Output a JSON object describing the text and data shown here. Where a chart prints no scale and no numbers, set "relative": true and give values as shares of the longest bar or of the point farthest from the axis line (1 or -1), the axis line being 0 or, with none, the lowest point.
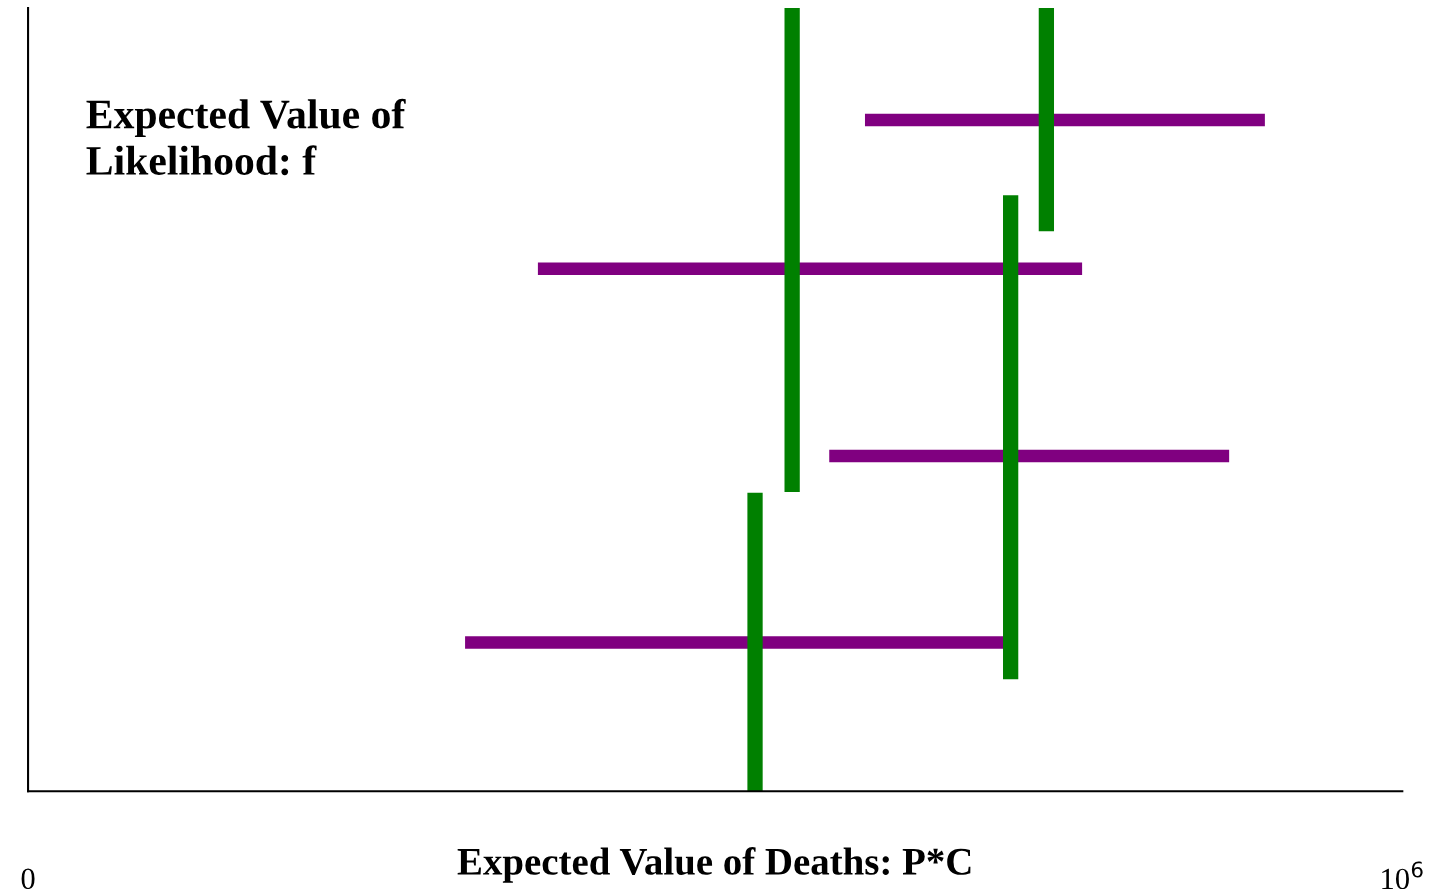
{
  "chart_data": {
    "type": "line",
    "relative": true,
    "marker": "none",
    "line_style": "solid",
    "grid": false,
    "tick_labels": "x",
    "xlabel": "Expected Value of Deaths: P*C",
    "ylabel": "Expected Value of\nLikelihood: f",
    "xlim": [
      0,
      1000000
    ],
    "xticks": [
      {
        "value": 0,
        "label": "0"
      },
      {
        "value": 1000000,
        "label": "10$^{6}$"
      }
    ],
    "series": [
      {
        "color": "#800080",
        "x": [
          609000,
          900000
        ],
        "values": [
          0.857,
          0.857
        ]
      },
      {
        "color": "#800080",
        "x": [
          371000,
          767000
        ],
        "values": [
          0.667,
          0.667
        ]
      },
      {
        "color": "#800080",
        "x": [
          583000,
          874000
        ],
        "values": [
          0.428,
          0.428
        ]
      },
      {
        "color": "#800080",
        "x": [
          318000,
          710000
        ],
        "values": [
          0.19,
          0.19
        ]
      },
      {
        "color": "#008000",
        "x": [
          556000,
          556000
        ],
        "values": [
          0.382,
          1.0
        ]
      },
      {
        "color": "#008000",
        "x": [
          741000,
          741000
        ],
        "values": [
          0.715,
          1.0
        ]
      },
      {
        "color": "#008000",
        "x": [
          715000,
          715000
        ],
        "values": [
          0.143,
          0.761
        ]
      },
      {
        "color": "#008000",
        "x": [
          529000,
          529000
        ],
        "values": [
          0,
          0.381
        ]
      }
    ]
  }
}
